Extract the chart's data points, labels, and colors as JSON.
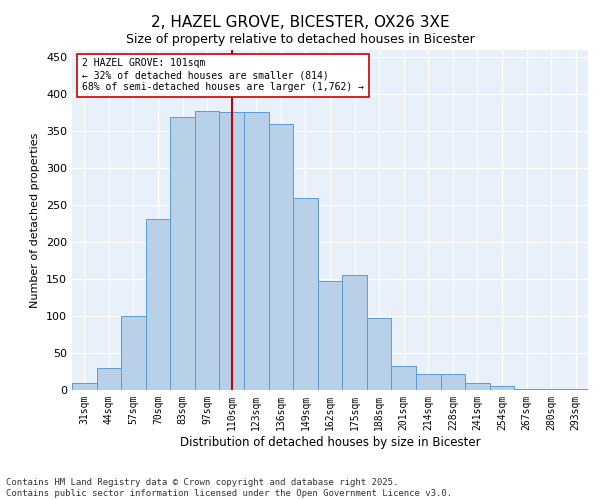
{
  "title": "2, HAZEL GROVE, BICESTER, OX26 3XE",
  "subtitle": "Size of property relative to detached houses in Bicester",
  "xlabel": "Distribution of detached houses by size in Bicester",
  "ylabel": "Number of detached properties",
  "bar_labels": [
    "31sqm",
    "44sqm",
    "57sqm",
    "70sqm",
    "83sqm",
    "97sqm",
    "110sqm",
    "123sqm",
    "136sqm",
    "149sqm",
    "162sqm",
    "175sqm",
    "188sqm",
    "201sqm",
    "214sqm",
    "228sqm",
    "241sqm",
    "254sqm",
    "267sqm",
    "280sqm",
    "293sqm"
  ],
  "bar_values": [
    9,
    30,
    100,
    232,
    370,
    378,
    376,
    376,
    360,
    260,
    147,
    155,
    97,
    32,
    22,
    22,
    10,
    5,
    2,
    2,
    1
  ],
  "bar_color": "#b8d0e8",
  "bar_edge_color": "#5b9bd5",
  "vline_x": 6.0,
  "vline_color": "#cc0000",
  "annotation_text": "2 HAZEL GROVE: 101sqm\n← 32% of detached houses are smaller (814)\n68% of semi-detached houses are larger (1,762) →",
  "annotation_box_color": "#ffffff",
  "annotation_box_edge_color": "#cc0000",
  "ylim": [
    0,
    460
  ],
  "yticks": [
    0,
    50,
    100,
    150,
    200,
    250,
    300,
    350,
    400,
    450
  ],
  "footer_line1": "Contains HM Land Registry data © Crown copyright and database right 2025.",
  "footer_line2": "Contains public sector information licensed under the Open Government Licence v3.0.",
  "bg_color": "#e8f1fa",
  "fig_bg_color": "#ffffff",
  "grid_color": "#ffffff",
  "title_fontsize": 11,
  "subtitle_fontsize": 9,
  "footer_fontsize": 6.5
}
